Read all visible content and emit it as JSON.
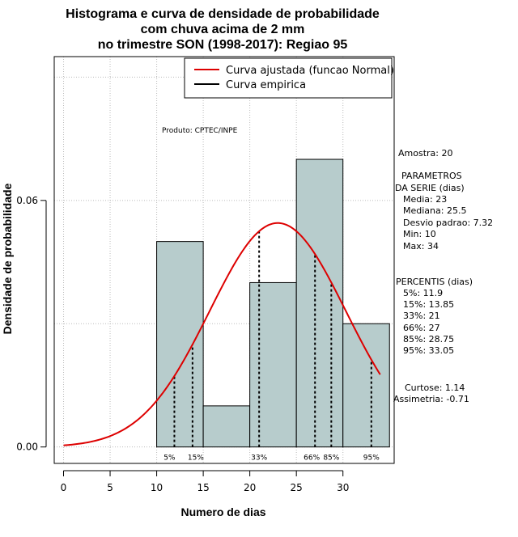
{
  "colors": {
    "bar_fill": "#b7cccc",
    "curve": "#dd0000",
    "grid": "#bbbbbb",
    "empirical": "#000000"
  },
  "chart_data": {
    "type": "bar",
    "title": [
      "Histograma e curva de densidade de probabilidade",
      "com chuva acima de 2 mm",
      "no trimestre SON (1998-2017): Regiao 95"
    ],
    "xlabel": "Numero de dias",
    "ylabel": "Densidade de probabilidade",
    "xlim": [
      -1,
      35.5
    ],
    "ylim": [
      -0.004,
      0.095
    ],
    "xticks": [
      0,
      5,
      10,
      15,
      20,
      25,
      30
    ],
    "xtick_labels": [
      "0",
      "5",
      "10",
      "15",
      "20",
      "25",
      "30"
    ],
    "yticks": [
      0.0,
      0.06
    ],
    "ytick_labels": [
      "0.00",
      "0.06"
    ],
    "grid_x": [
      0,
      5,
      10,
      15,
      20,
      25,
      30
    ],
    "grid_y": [
      0.0,
      0.03,
      0.06,
      0.09
    ],
    "bins": [
      {
        "from": 10,
        "to": 15,
        "density": 0.05
      },
      {
        "from": 15,
        "to": 20,
        "density": 0.01
      },
      {
        "from": 20,
        "to": 25,
        "density": 0.04
      },
      {
        "from": 25,
        "to": 30,
        "density": 0.07
      },
      {
        "from": 30,
        "to": 35,
        "density": 0.03
      }
    ],
    "normal_fit": {
      "mean": 23,
      "sd": 7.32,
      "x_from": 0,
      "x_to": 34
    },
    "percentiles": [
      {
        "label": "5%",
        "value": 11.9
      },
      {
        "label": "15%",
        "value": 13.85
      },
      {
        "label": "33%",
        "value": 21
      },
      {
        "label": "66%",
        "value": 27
      },
      {
        "label": "85%",
        "value": 28.75
      },
      {
        "label": "95%",
        "value": 33.05
      }
    ],
    "legend": {
      "position": "top-right",
      "entries": [
        "Curva ajustada (funcao Normal)",
        "Curva empirica"
      ]
    },
    "annotation": "Produto: CPTEC/INPE"
  },
  "stats_panel": {
    "amostra": "Amostra: 20",
    "param_header_1": "PARAMETROS",
    "param_header_2": "DA SERIE (dias)",
    "media": "Media: 23",
    "mediana": "Mediana: 25.5",
    "desvio": "Desvio padrao: 7.32",
    "min": "Min: 10",
    "max": "Max: 34",
    "percentis_header": "PERCENTIS (dias)",
    "p5": "5%: 11.9",
    "p15": "15%: 13.85",
    "p33": "33%: 21",
    "p66": "66%: 27",
    "p85": "85%: 28.75",
    "p95": "95%: 33.05",
    "curtose": "Curtose: 1.14",
    "assimetria": "Assimetria: -0.71"
  }
}
